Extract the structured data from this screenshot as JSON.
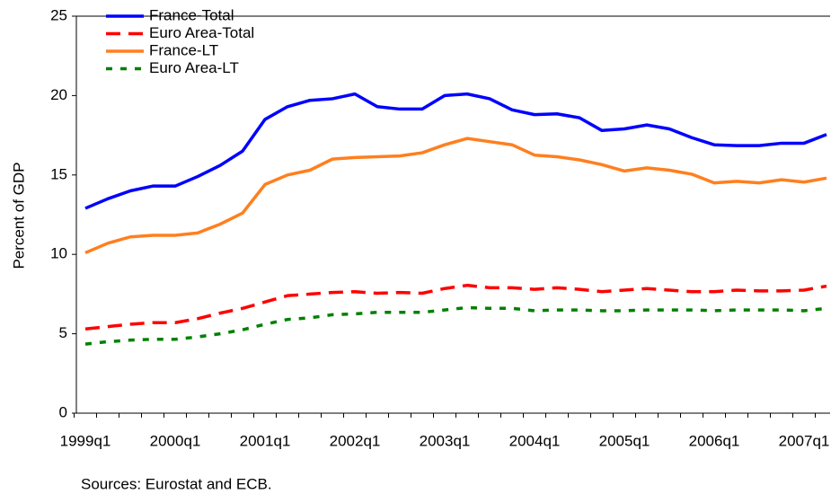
{
  "chart_data": {
    "type": "line",
    "y_label": "Percent of GDP",
    "note": "Sources: Eurostat and ECB.",
    "categories": [
      "1999q1",
      null,
      null,
      null,
      "2000q1",
      null,
      null,
      null,
      "2001q1",
      null,
      null,
      null,
      "2002q1",
      null,
      null,
      null,
      "2003q1",
      null,
      null,
      null,
      "2004q1",
      null,
      null,
      null,
      "2005q1",
      null,
      null,
      null,
      "2006q1",
      null,
      null,
      null,
      "2007q1",
      null
    ],
    "series": [
      {
        "name": "France-Total",
        "color": "#0000ff",
        "style": "solid",
        "values": [
          12.9,
          13.5,
          14.0,
          14.3,
          14.3,
          14.9,
          15.6,
          16.5,
          18.5,
          19.3,
          19.7,
          19.8,
          20.1,
          19.3,
          19.15,
          19.15,
          20.0,
          20.1,
          19.8,
          19.1,
          18.8,
          18.85,
          18.6,
          17.8,
          17.9,
          18.15,
          17.9,
          17.35,
          16.9,
          16.85,
          16.85,
          17.0,
          17.0,
          17.55
        ]
      },
      {
        "name": "Euro Area-Total",
        "color": "#ff0000",
        "style": "dashed",
        "values": [
          5.3,
          5.45,
          5.6,
          5.7,
          5.7,
          5.95,
          6.3,
          6.6,
          7.0,
          7.4,
          7.5,
          7.6,
          7.65,
          7.55,
          7.6,
          7.55,
          7.85,
          8.05,
          7.9,
          7.9,
          7.8,
          7.9,
          7.8,
          7.65,
          7.75,
          7.85,
          7.75,
          7.65,
          7.65,
          7.75,
          7.7,
          7.7,
          7.75,
          8.0
        ]
      },
      {
        "name": "France-LT",
        "color": "#ff7f1e",
        "style": "solid",
        "values": [
          10.1,
          10.7,
          11.1,
          11.2,
          11.2,
          11.35,
          11.9,
          12.6,
          14.4,
          15.0,
          15.3,
          16.0,
          16.1,
          16.15,
          16.2,
          16.4,
          16.9,
          17.3,
          17.1,
          16.9,
          16.25,
          16.15,
          15.95,
          15.65,
          15.25,
          15.45,
          15.3,
          15.05,
          14.5,
          14.6,
          14.5,
          14.7,
          14.55,
          14.8
        ]
      },
      {
        "name": "Euro Area-LT",
        "color": "#008000",
        "style": "dotted",
        "values": [
          4.35,
          4.5,
          4.6,
          4.65,
          4.65,
          4.8,
          5.0,
          5.25,
          5.6,
          5.9,
          6.0,
          6.2,
          6.25,
          6.35,
          6.35,
          6.35,
          6.5,
          6.65,
          6.6,
          6.6,
          6.45,
          6.5,
          6.5,
          6.45,
          6.45,
          6.5,
          6.5,
          6.5,
          6.45,
          6.5,
          6.5,
          6.5,
          6.45,
          6.6
        ]
      }
    ],
    "ylim": [
      0,
      25
    ],
    "yticks": [
      0,
      5,
      10,
      15,
      20,
      25
    ],
    "grid": false,
    "legend": "top-left"
  }
}
